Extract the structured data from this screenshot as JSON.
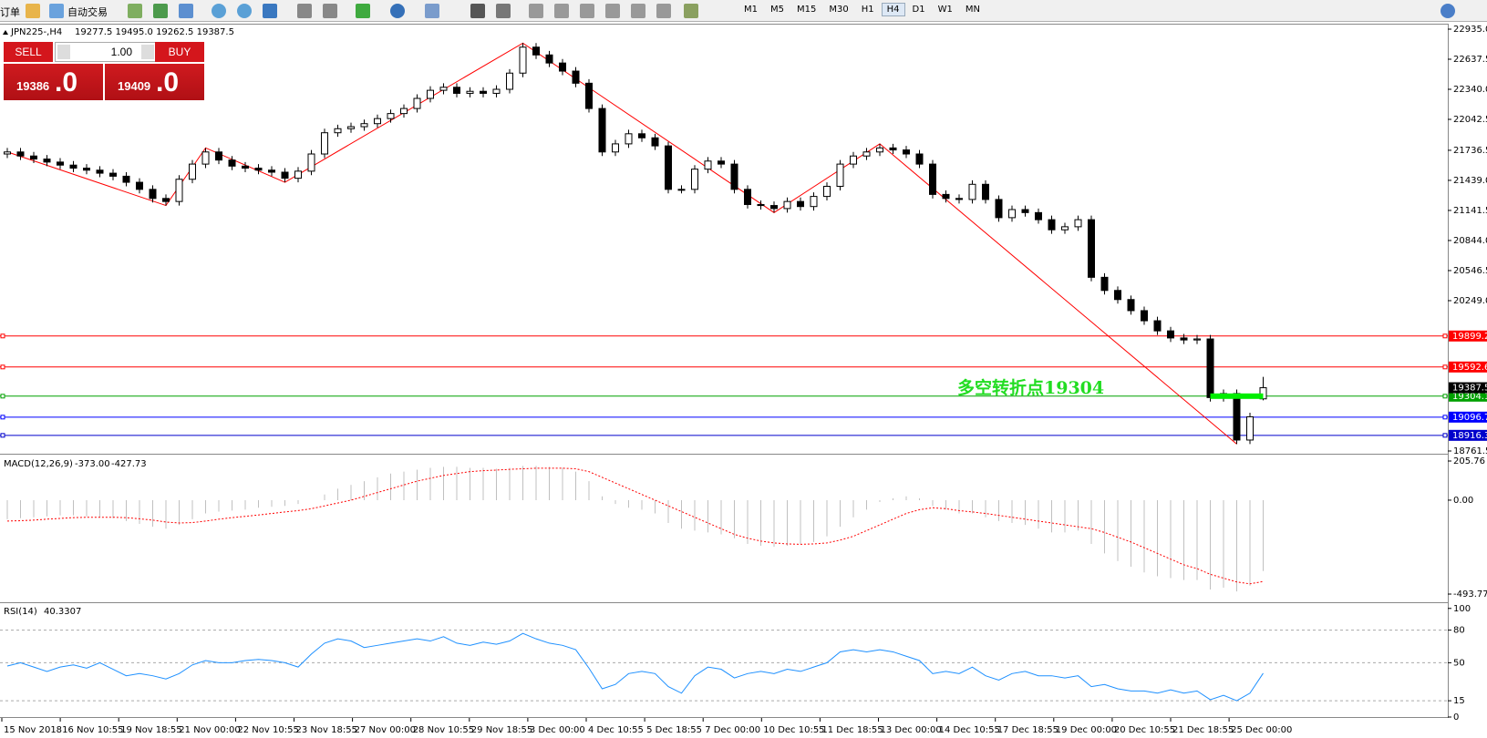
{
  "toolbar": {
    "items": [
      "订单",
      "自动交易"
    ],
    "timeframes": [
      "M1",
      "M5",
      "M15",
      "M30",
      "H1",
      "H4",
      "D1",
      "W1",
      "MN"
    ]
  },
  "trade_panel": {
    "sell": "SELL",
    "lots": "1.00",
    "buy": "BUY",
    "bid": "19386",
    "bid_frac": ".0",
    "ask": "19409",
    "ask_frac": ".0"
  },
  "chart_data": {
    "type": "candlestick",
    "header": {
      "symbol": "JPN225-,H4",
      "ohlc": "19277.5 19495.0 19262.5 19387.5"
    },
    "ylim": [
      18743.5,
      22980
    ],
    "yticks": [
      {
        "value": 22935,
        "label": "22935.0"
      },
      22637.5,
      {
        "value": 22340,
        "label": "22340.0"
      },
      22042.5,
      21736.5,
      {
        "value": 21439,
        "label": "21439.0"
      },
      21141.5,
      {
        "value": 20844,
        "label": "20844.0"
      },
      20546.5,
      {
        "value": 20249,
        "label": "20249.0"
      },
      18761.5
    ],
    "bull_color": "#ffffff",
    "bear_color": "#000000",
    "ohlc": [
      [
        21700,
        21760,
        21660,
        21720
      ],
      [
        21720,
        21760,
        21640,
        21680
      ],
      [
        21680,
        21720,
        21610,
        21650
      ],
      [
        21650,
        21690,
        21580,
        21620
      ],
      [
        21620,
        21660,
        21550,
        21590
      ],
      [
        21590,
        21630,
        21520,
        21560
      ],
      [
        21560,
        21600,
        21500,
        21540
      ],
      [
        21540,
        21580,
        21470,
        21510
      ],
      [
        21510,
        21550,
        21440,
        21480
      ],
      [
        21480,
        21520,
        21380,
        21420
      ],
      [
        21420,
        21460,
        21310,
        21350
      ],
      [
        21350,
        21390,
        21220,
        21260
      ],
      [
        21260,
        21300,
        21190,
        21230
      ],
      [
        21230,
        21490,
        21190,
        21450
      ],
      [
        21450,
        21640,
        21410,
        21600
      ],
      [
        21600,
        21760,
        21560,
        21720
      ],
      [
        21720,
        21760,
        21600,
        21640
      ],
      [
        21640,
        21680,
        21540,
        21580
      ],
      [
        21580,
        21620,
        21520,
        21560
      ],
      [
        21560,
        21600,
        21500,
        21540
      ],
      [
        21540,
        21580,
        21480,
        21520
      ],
      [
        21520,
        21560,
        21420,
        21460
      ],
      [
        21460,
        21570,
        21420,
        21530
      ],
      [
        21530,
        21740,
        21490,
        21700
      ],
      [
        21700,
        21950,
        21660,
        21910
      ],
      [
        21910,
        21990,
        21870,
        21950
      ],
      [
        21950,
        22010,
        21910,
        21970
      ],
      [
        21970,
        22040,
        21930,
        22000
      ],
      [
        22000,
        22090,
        21960,
        22050
      ],
      [
        22050,
        22140,
        22010,
        22100
      ],
      [
        22100,
        22190,
        22060,
        22150
      ],
      [
        22150,
        22290,
        22110,
        22250
      ],
      [
        22250,
        22370,
        22210,
        22330
      ],
      [
        22330,
        22400,
        22290,
        22360
      ],
      [
        22360,
        22400,
        22260,
        22300
      ],
      [
        22300,
        22360,
        22260,
        22320
      ],
      [
        22320,
        22360,
        22260,
        22300
      ],
      [
        22300,
        22380,
        22260,
        22340
      ],
      [
        22340,
        22540,
        22300,
        22500
      ],
      [
        22500,
        22797,
        22460,
        22757
      ],
      [
        22757,
        22797,
        22640,
        22680
      ],
      [
        22680,
        22720,
        22560,
        22600
      ],
      [
        22600,
        22640,
        22480,
        22520
      ],
      [
        22520,
        22560,
        22360,
        22400
      ],
      [
        22400,
        22440,
        22110,
        22150
      ],
      [
        22150,
        22190,
        21680,
        21720
      ],
      [
        21720,
        21840,
        21680,
        21800
      ],
      [
        21800,
        21940,
        21760,
        21900
      ],
      [
        21900,
        21940,
        21820,
        21860
      ],
      [
        21860,
        21900,
        21740,
        21780
      ],
      [
        21780,
        21820,
        21310,
        21350
      ],
      [
        21350,
        21390,
        21310,
        21350
      ],
      [
        21350,
        21590,
        21310,
        21550
      ],
      [
        21550,
        21670,
        21510,
        21630
      ],
      [
        21630,
        21670,
        21560,
        21600
      ],
      [
        21600,
        21640,
        21310,
        21350
      ],
      [
        21350,
        21390,
        21160,
        21200
      ],
      [
        21200,
        21240,
        21150,
        21190
      ],
      [
        21190,
        21230,
        21120,
        21160
      ],
      [
        21160,
        21270,
        21120,
        21230
      ],
      [
        21230,
        21270,
        21140,
        21180
      ],
      [
        21180,
        21320,
        21140,
        21280
      ],
      [
        21280,
        21420,
        21240,
        21380
      ],
      [
        21380,
        21640,
        21340,
        21600
      ],
      [
        21600,
        21720,
        21560,
        21680
      ],
      [
        21680,
        21760,
        21640,
        21720
      ],
      [
        21720,
        21800,
        21680,
        21760
      ],
      [
        21760,
        21800,
        21700,
        21740
      ],
      [
        21740,
        21780,
        21660,
        21700
      ],
      [
        21700,
        21740,
        21560,
        21600
      ],
      [
        21600,
        21640,
        21260,
        21300
      ],
      [
        21300,
        21340,
        21220,
        21260
      ],
      [
        21260,
        21300,
        21210,
        21250
      ],
      [
        21250,
        21440,
        21210,
        21400
      ],
      [
        21400,
        21440,
        21210,
        21250
      ],
      [
        21250,
        21290,
        21030,
        21070
      ],
      [
        21070,
        21190,
        21030,
        21150
      ],
      [
        21150,
        21190,
        21080,
        21120
      ],
      [
        21120,
        21160,
        21010,
        21050
      ],
      [
        21050,
        21090,
        20910,
        20950
      ],
      [
        20950,
        21020,
        20910,
        20980
      ],
      [
        20980,
        21090,
        20940,
        21050
      ],
      [
        21050,
        21090,
        20440,
        20480
      ],
      [
        20480,
        20520,
        20310,
        20350
      ],
      [
        20350,
        20390,
        20220,
        20260
      ],
      [
        20260,
        20300,
        20110,
        20150
      ],
      [
        20150,
        20190,
        20010,
        20050
      ],
      [
        20050,
        20090,
        19910,
        19950
      ],
      [
        19950,
        19990,
        19840,
        19880
      ],
      [
        19880,
        19920,
        19820,
        19860
      ],
      [
        19860,
        19910,
        19820,
        19870
      ],
      [
        19870,
        19910,
        19250,
        19290
      ],
      [
        19290,
        19370,
        19250,
        19330
      ],
      [
        19330,
        19370,
        18830,
        18870
      ],
      [
        18870,
        19140,
        18830,
        19100
      ],
      [
        19277.5,
        19495.0,
        19262.5,
        19387.5
      ]
    ],
    "zigzag": {
      "color": "#ff0000",
      "index": [
        0,
        12,
        15,
        21,
        39,
        58,
        66,
        93
      ],
      "values": [
        21720,
        21190,
        21760,
        21420,
        22797,
        21120,
        21800,
        18830
      ]
    },
    "levels": [
      {
        "value": 19899.2,
        "color": "#ff0000"
      },
      {
        "value": 19592.6,
        "color": "#ff0000"
      },
      {
        "value": 19304.1,
        "color": "#00a000"
      },
      {
        "value": 19096.7,
        "color": "#0000ff"
      },
      {
        "value": 18916.3,
        "color": "#0000cc"
      }
    ],
    "annotation": {
      "text": "多空转折点19304",
      "color": "#22dd22"
    },
    "x_labels": [
      "15 Nov 2018",
      "16 Nov 10:55",
      "19 Nov 18:55",
      "21 Nov 00:00",
      "22 Nov 10:55",
      "23 Nov 18:55",
      "27 Nov 00:00",
      "28 Nov 10:55",
      "29 Nov 18:55",
      "3 Dec 00:00",
      "4 Dec 10:55",
      "5 Dec 18:55",
      "7 Dec 00:00",
      "10 Dec 10:55",
      "11 Dec 18:55",
      "13 Dec 00:00",
      "14 Dec 10:55",
      "17 Dec 18:55",
      "19 Dec 00:00",
      "20 Dec 10:55",
      "21 Dec 18:55",
      "25 Dec 00:00"
    ],
    "macd": {
      "name": "MACD(12,26,9)",
      "header_values": [
        "-373.00",
        "-427.73"
      ],
      "ylim": [
        -532,
        234.5
      ],
      "yticks": [
        205.76,
        {
          "value": 0,
          "label": "0.00"
        },
        -493.77
      ],
      "hist_color": "#c0c0c0",
      "signal_color": "#ff0000",
      "values": [
        -100,
        -95,
        -90,
        -85,
        -80,
        -80,
        -85,
        -90,
        -95,
        -110,
        -125,
        -140,
        -150,
        -130,
        -100,
        -70,
        -60,
        -55,
        -50,
        -40,
        -35,
        -30,
        -20,
        0,
        30,
        60,
        80,
        100,
        120,
        140,
        150,
        160,
        170,
        175,
        175,
        170,
        170,
        165,
        170,
        180,
        180,
        175,
        170,
        150,
        100,
        20,
        -20,
        -40,
        -50,
        -70,
        -120,
        -150,
        -160,
        -170,
        -180,
        -200,
        -230,
        -240,
        -245,
        -240,
        -230,
        -220,
        -190,
        -140,
        -90,
        -50,
        -10,
        10,
        20,
        10,
        -30,
        -50,
        -70,
        -70,
        -90,
        -110,
        -120,
        -130,
        -150,
        -170,
        -170,
        -160,
        -230,
        -280,
        -320,
        -350,
        -380,
        -400,
        -410,
        -420,
        -420,
        -470,
        -460,
        -480,
        -450,
        -373
      ],
      "signal": [
        -110,
        -108,
        -105,
        -100,
        -96,
        -92,
        -90,
        -90,
        -90,
        -92,
        -98,
        -105,
        -115,
        -120,
        -118,
        -110,
        -100,
        -92,
        -85,
        -78,
        -70,
        -62,
        -55,
        -45,
        -30,
        -15,
        0,
        20,
        40,
        60,
        80,
        100,
        115,
        130,
        140,
        150,
        155,
        158,
        162,
        165,
        168,
        168,
        168,
        165,
        150,
        120,
        90,
        60,
        30,
        0,
        -30,
        -60,
        -90,
        -120,
        -150,
        -180,
        -200,
        -215,
        -225,
        -230,
        -232,
        -230,
        -225,
        -210,
        -190,
        -160,
        -130,
        -100,
        -70,
        -50,
        -40,
        -45,
        -55,
        -62,
        -70,
        -80,
        -90,
        -100,
        -110,
        -120,
        -130,
        -140,
        -150,
        -170,
        -195,
        -220,
        -250,
        -280,
        -310,
        -340,
        -360,
        -390,
        -410,
        -430,
        -440,
        -427.73
      ]
    },
    "rsi": {
      "name": "RSI(14)",
      "ylim": [
        0,
        104
      ],
      "yticks": [
        100,
        80,
        50,
        15,
        0
      ],
      "levels": [
        80,
        50,
        15
      ],
      "color": "#1e90ff",
      "values": [
        47,
        50,
        46,
        42,
        46,
        48,
        45,
        50,
        44,
        38,
        40,
        38,
        35,
        40,
        48,
        52,
        50,
        50,
        52,
        53,
        52,
        50,
        46,
        58,
        68,
        72,
        70,
        64,
        66,
        68,
        70,
        72,
        70,
        74,
        68,
        66,
        69,
        67,
        70,
        77,
        72,
        68,
        66,
        62,
        45,
        26,
        30,
        40,
        42,
        40,
        28,
        22,
        38,
        46,
        44,
        36,
        40,
        42,
        40,
        44,
        42,
        46,
        50,
        60,
        62,
        60,
        62,
        60,
        56,
        52,
        40,
        42,
        40,
        46,
        38,
        34,
        40,
        42,
        38,
        38,
        36,
        38,
        28,
        30,
        26,
        24,
        24,
        22,
        25,
        22,
        24,
        16,
        20,
        15,
        22,
        40.3307
      ]
    }
  }
}
